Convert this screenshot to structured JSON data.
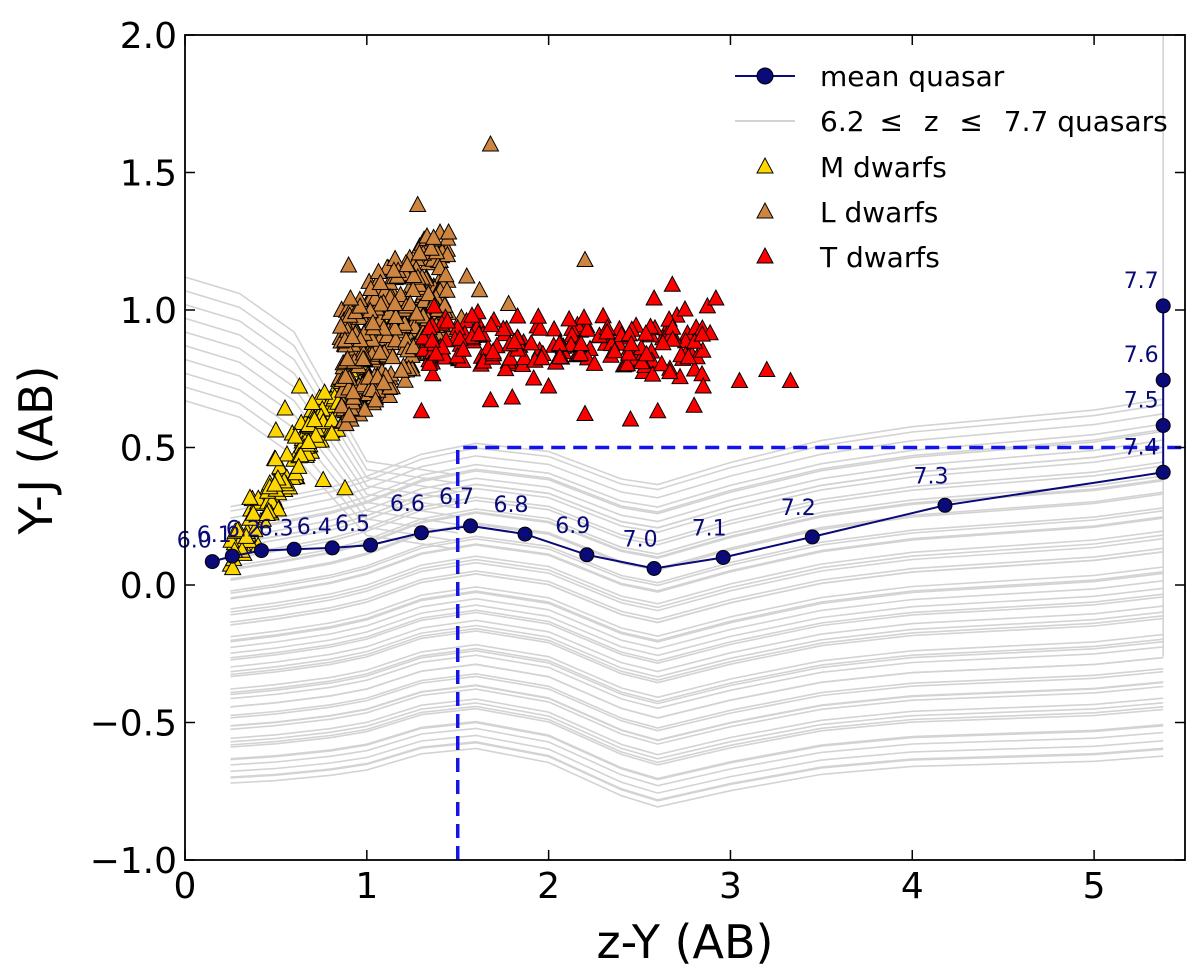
{
  "chart_data": {
    "type": "scatter",
    "xlabel": "z-Y (AB)",
    "ylabel": "Y-J (AB)",
    "xlim": [
      0,
      5.5
    ],
    "ylim": [
      -1.0,
      2.0
    ],
    "xticks": [
      0,
      1,
      2,
      3,
      4,
      5
    ],
    "yticks": [
      -1.0,
      -0.5,
      0.0,
      0.5,
      1.0,
      1.5,
      2.0
    ],
    "xtick_labels": [
      "0",
      "1",
      "2",
      "3",
      "4",
      "5"
    ],
    "ytick_labels": [
      "−1.0",
      "−0.5",
      "0.0",
      "0.5",
      "1.0",
      "1.5",
      "2.0"
    ],
    "colors": {
      "mean_quasar": "#0a0a78",
      "quasar_tracks": "#d3d3d3",
      "m_dwarf": "#ffd700",
      "l_dwarf": "#cd853f",
      "t_dwarf": "#ff0000",
      "selection_box": "#1414e6"
    },
    "legend": {
      "placement": "top-right",
      "entries": [
        {
          "key": "mean_quasar",
          "label": "mean quasar"
        },
        {
          "key": "quasar_tracks",
          "label_prefix": "6.2",
          "le_symbol": "≤",
          "label_mid": "z",
          "label_suffix": "7.7 quasars"
        },
        {
          "key": "m_dwarf",
          "label": "M dwarfs"
        },
        {
          "key": "l_dwarf",
          "label": "L dwarfs"
        },
        {
          "key": "t_dwarf",
          "label": "T dwarfs"
        }
      ]
    },
    "mean_quasar": {
      "name": "mean quasar",
      "points": [
        {
          "z": "6.0",
          "x": 0.15,
          "y": 0.085
        },
        {
          "z": "6.1",
          "x": 0.26,
          "y": 0.105
        },
        {
          "z": "6.2",
          "x": 0.42,
          "y": 0.125
        },
        {
          "z": "6.3",
          "x": 0.6,
          "y": 0.13
        },
        {
          "z": "6.4",
          "x": 0.81,
          "y": 0.135
        },
        {
          "z": "6.5",
          "x": 1.02,
          "y": 0.145
        },
        {
          "z": "6.6",
          "x": 1.3,
          "y": 0.19
        },
        {
          "z": "6.7",
          "x": 1.57,
          "y": 0.215
        },
        {
          "z": "6.8",
          "x": 1.87,
          "y": 0.185
        },
        {
          "z": "6.9",
          "x": 2.21,
          "y": 0.11
        },
        {
          "z": "7.0",
          "x": 2.58,
          "y": 0.06
        },
        {
          "z": "7.1",
          "x": 2.96,
          "y": 0.1
        },
        {
          "z": "7.2",
          "x": 3.45,
          "y": 0.175
        },
        {
          "z": "7.3",
          "x": 4.18,
          "y": 0.29
        },
        {
          "z": "7.4",
          "x": 5.38,
          "y": 0.41
        },
        {
          "z": "7.5",
          "x": 5.38,
          "y": 0.58
        },
        {
          "z": "7.6",
          "x": 5.38,
          "y": 0.745
        },
        {
          "z": "7.7",
          "x": 5.38,
          "y": 1.015
        }
      ]
    },
    "selection_box": {
      "x_min": 1.5,
      "y_max": 0.5
    },
    "quasar_tracks": {
      "name": "6.2 ≤ z ≤ 7.7 quasars",
      "count": 60,
      "base_x": [
        0.25,
        0.5,
        0.8,
        1.0,
        1.3,
        1.6,
        2.0,
        2.4,
        2.6,
        3.0,
        3.5,
        4.0,
        4.5,
        5.0,
        5.38
      ],
      "base_y": [
        -0.2,
        -0.18,
        -0.15,
        -0.12,
        -0.05,
        -0.02,
        -0.06,
        -0.17,
        -0.2,
        -0.13,
        -0.06,
        -0.02,
        0.0,
        0.02,
        0.05
      ],
      "offset_range": [
        -0.65,
        0.6
      ]
    },
    "dwarf_clusters": {
      "m_dwarfs": {
        "name": "M dwarfs",
        "count": 180,
        "x_range": [
          0.25,
          1.15
        ],
        "slope": 0.95,
        "intercept": 0.0,
        "scatter": 0.07
      },
      "l_dwarfs": {
        "name": "L dwarfs",
        "count": 340,
        "x_range": [
          0.85,
          1.45
        ],
        "center_y": 0.85,
        "spread_y": 0.22
      },
      "t_dwarfs": {
        "name": "T dwarfs",
        "count": 190,
        "x_range": [
          1.3,
          2.9
        ],
        "center_y": 0.87,
        "spread_y": 0.08
      }
    },
    "dwarf_outliers": {
      "m_dwarfs": [
        {
          "x": 0.5,
          "y": 0.56
        },
        {
          "x": 0.55,
          "y": 0.64
        },
        {
          "x": 0.63,
          "y": 0.72
        },
        {
          "x": 0.7,
          "y": 0.66
        },
        {
          "x": 0.88,
          "y": 0.35
        },
        {
          "x": 0.76,
          "y": 0.38
        }
      ],
      "l_dwarfs": [
        {
          "x": 1.68,
          "y": 1.6
        },
        {
          "x": 1.28,
          "y": 1.38
        },
        {
          "x": 1.45,
          "y": 1.28
        },
        {
          "x": 2.2,
          "y": 1.18
        },
        {
          "x": 0.9,
          "y": 1.16
        },
        {
          "x": 0.91,
          "y": 1.04
        },
        {
          "x": 1.55,
          "y": 1.12
        },
        {
          "x": 1.62,
          "y": 1.07
        },
        {
          "x": 1.78,
          "y": 1.02
        },
        {
          "x": 0.92,
          "y": 0.9
        },
        {
          "x": 0.98,
          "y": 0.82
        },
        {
          "x": 1.52,
          "y": 0.97
        }
      ],
      "t_dwarfs": [
        {
          "x": 2.92,
          "y": 1.04
        },
        {
          "x": 3.2,
          "y": 0.78
        },
        {
          "x": 3.33,
          "y": 0.74
        },
        {
          "x": 3.05,
          "y": 0.74
        },
        {
          "x": 2.58,
          "y": 1.04
        },
        {
          "x": 2.68,
          "y": 1.09
        },
        {
          "x": 2.75,
          "y": 1.0
        },
        {
          "x": 1.3,
          "y": 0.63
        },
        {
          "x": 1.68,
          "y": 0.67
        },
        {
          "x": 1.8,
          "y": 0.68
        },
        {
          "x": 2.45,
          "y": 0.6
        },
        {
          "x": 2.2,
          "y": 0.62
        },
        {
          "x": 2.6,
          "y": 0.63
        },
        {
          "x": 2.8,
          "y": 0.65
        },
        {
          "x": 2.85,
          "y": 0.72
        },
        {
          "x": 2.0,
          "y": 0.72
        }
      ]
    }
  }
}
